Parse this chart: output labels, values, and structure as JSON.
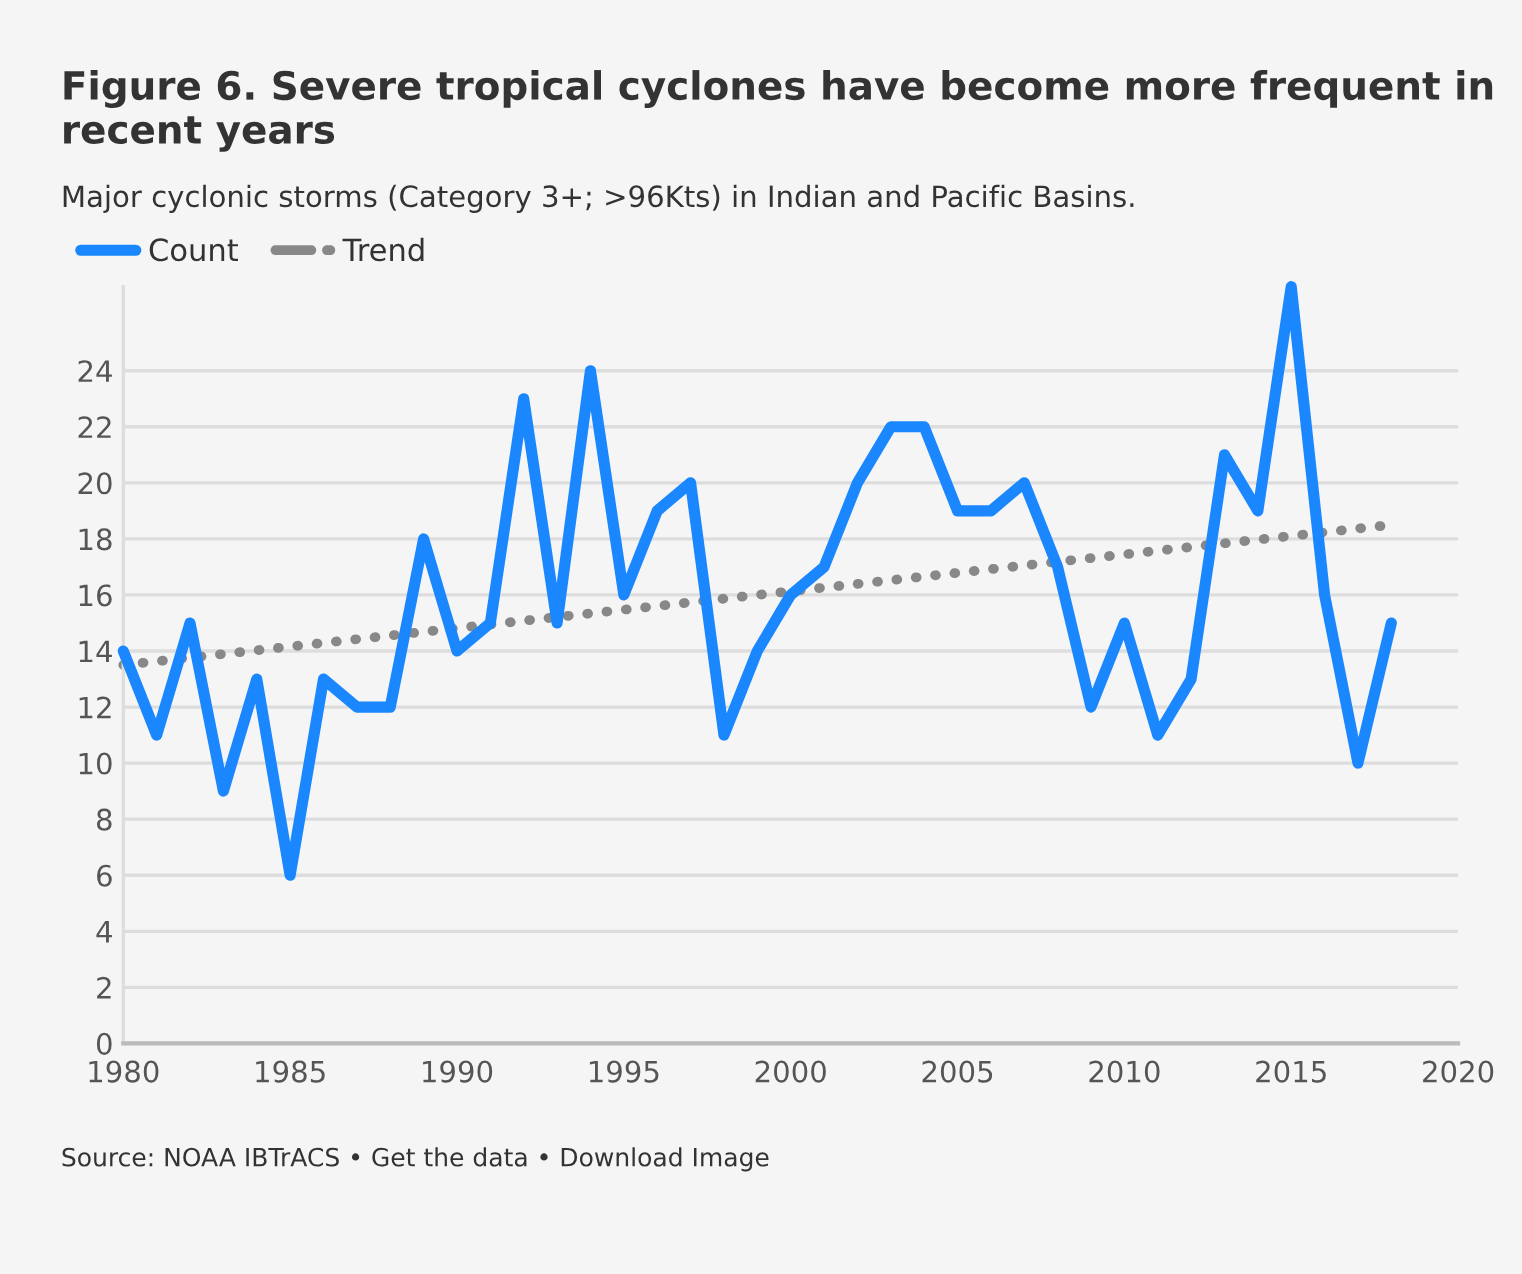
{
  "chart_data": {
    "type": "line",
    "title": "Figure 6. Severe tropical cyclones have become more frequent in recent years",
    "subtitle": "Major cyclonic storms (Category 3+; >96Kts) in Indian and Pacific Basins.",
    "x": [
      1980,
      1981,
      1982,
      1983,
      1984,
      1985,
      1986,
      1987,
      1988,
      1989,
      1990,
      1991,
      1992,
      1993,
      1994,
      1995,
      1996,
      1997,
      1998,
      1999,
      2000,
      2001,
      2002,
      2003,
      2004,
      2005,
      2006,
      2007,
      2008,
      2009,
      2010,
      2011,
      2012,
      2013,
      2014,
      2015,
      2016,
      2017,
      2018
    ],
    "series": [
      {
        "name": "Count",
        "color": "#1a87ff",
        "line_style": "solid",
        "values": [
          14,
          11,
          15,
          9,
          13,
          6,
          13,
          12,
          12,
          18,
          14,
          15,
          23,
          15,
          24,
          16,
          19,
          20,
          11,
          14,
          16,
          17,
          20,
          22,
          22,
          19,
          19,
          20,
          17,
          12,
          15,
          11,
          13,
          21,
          19,
          27,
          16,
          10,
          15
        ]
      },
      {
        "name": "Trend",
        "color": "#888888",
        "line_style": "dotted",
        "x": [
          1980,
          2018
        ],
        "values": [
          13.5,
          18.5
        ]
      }
    ],
    "xlim": [
      1980,
      2020
    ],
    "xticks": [
      1980,
      1985,
      1990,
      1995,
      2000,
      2005,
      2010,
      2015,
      2020
    ],
    "ylim": [
      0,
      27
    ],
    "yticks": [
      0,
      2,
      4,
      6,
      8,
      10,
      12,
      14,
      16,
      18,
      20,
      22,
      24
    ],
    "grid": "y",
    "legend": "top left",
    "marker": "none",
    "annotations": [
      "Source: NOAA IBTrACS • Get the data • Download Image"
    ]
  }
}
